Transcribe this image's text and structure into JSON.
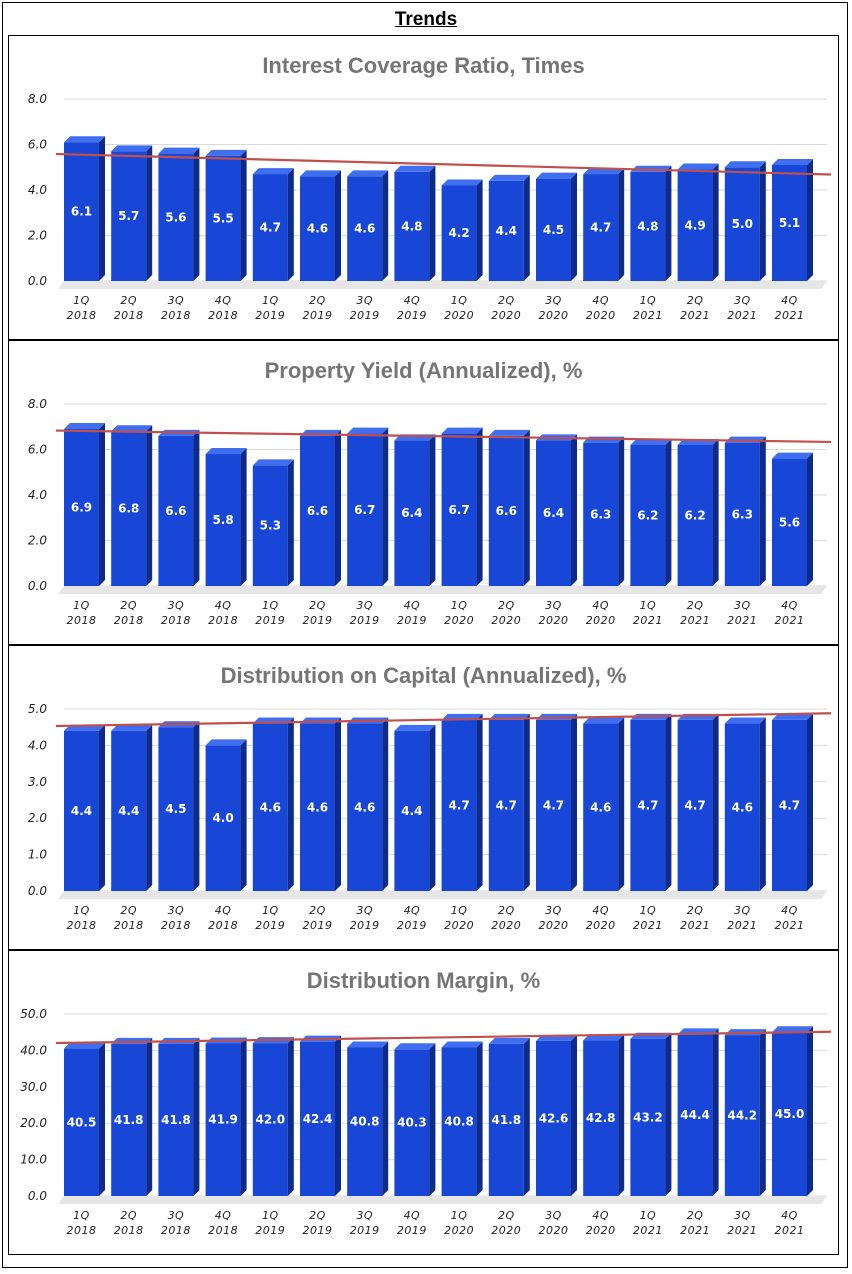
{
  "page": {
    "title": "Trends"
  },
  "colors": {
    "bar_front": "#1846d6",
    "bar_side": "#0d2b8a",
    "bar_top": "#3f6ef0",
    "trend": "#c0504d",
    "grid": "#d9d9d9",
    "title": "#757575"
  },
  "chart_data": [
    {
      "type": "bar",
      "title": "Interest Coverage Ratio, Times",
      "categories": [
        "1Q 2018",
        "2Q 2018",
        "3Q 2018",
        "4Q 2018",
        "1Q 2019",
        "2Q 2019",
        "3Q 2019",
        "4Q 2019",
        "1Q 2020",
        "2Q 2020",
        "3Q 2020",
        "4Q 2020",
        "1Q 2021",
        "2Q 2021",
        "3Q 2021",
        "4Q 2021"
      ],
      "values": [
        6.1,
        5.7,
        5.6,
        5.5,
        4.7,
        4.6,
        4.6,
        4.8,
        4.2,
        4.4,
        4.5,
        4.7,
        4.8,
        4.9,
        5.0,
        5.1
      ],
      "value_labels": [
        "6.1",
        "5.7",
        "5.6",
        "5.5",
        "4.7",
        "4.6",
        "4.6",
        "4.8",
        "4.2",
        "4.4",
        "4.5",
        "4.7",
        "4.8",
        "4.9",
        "5.0",
        "5.1"
      ],
      "ylim": [
        0,
        8
      ],
      "yticks": [
        "0.0",
        "2.0",
        "4.0",
        "6.0",
        "8.0"
      ],
      "trendline": {
        "start": 5.45,
        "end": 4.55
      }
    },
    {
      "type": "bar",
      "title": "Property Yield (Annualized), %",
      "categories": [
        "1Q 2018",
        "2Q 2018",
        "3Q 2018",
        "4Q 2018",
        "1Q 2019",
        "2Q 2019",
        "3Q 2019",
        "4Q 2019",
        "1Q 2020",
        "2Q 2020",
        "3Q 2020",
        "4Q 2020",
        "1Q 2021",
        "2Q 2021",
        "3Q 2021",
        "4Q 2021"
      ],
      "values": [
        6.9,
        6.8,
        6.6,
        5.8,
        5.3,
        6.6,
        6.7,
        6.4,
        6.7,
        6.6,
        6.4,
        6.3,
        6.2,
        6.2,
        6.3,
        5.6
      ],
      "value_labels": [
        "6.9",
        "6.8",
        "6.6",
        "5.8",
        "5.3",
        "6.6",
        "6.7",
        "6.4",
        "6.7",
        "6.6",
        "6.4",
        "6.3",
        "6.2",
        "6.2",
        "6.3",
        "5.6"
      ],
      "ylim": [
        0,
        8
      ],
      "yticks": [
        "0.0",
        "2.0",
        "4.0",
        "6.0",
        "8.0"
      ],
      "trendline": {
        "start": 6.7,
        "end": 6.2
      }
    },
    {
      "type": "bar",
      "title": "Distribution on Capital (Annualized), %",
      "categories": [
        "1Q 2018",
        "2Q 2018",
        "3Q 2018",
        "4Q 2018",
        "1Q 2019",
        "2Q 2019",
        "3Q 2019",
        "4Q 2019",
        "1Q 2020",
        "2Q 2020",
        "3Q 2020",
        "4Q 2020",
        "1Q 2021",
        "2Q 2021",
        "3Q 2021",
        "4Q 2021"
      ],
      "values": [
        4.4,
        4.4,
        4.5,
        4.0,
        4.6,
        4.6,
        4.6,
        4.4,
        4.7,
        4.7,
        4.7,
        4.6,
        4.7,
        4.7,
        4.6,
        4.7
      ],
      "value_labels": [
        "4.4",
        "4.4",
        "4.5",
        "4.0",
        "4.6",
        "4.6",
        "4.6",
        "4.4",
        "4.7",
        "4.7",
        "4.7",
        "4.6",
        "4.7",
        "4.7",
        "4.6",
        "4.7"
      ],
      "ylim": [
        0,
        5
      ],
      "yticks": [
        "0.0",
        "1.0",
        "2.0",
        "3.0",
        "4.0",
        "5.0"
      ],
      "trendline": {
        "start": 4.45,
        "end": 4.8
      }
    },
    {
      "type": "bar",
      "title": "Distribution Margin, %",
      "categories": [
        "1Q 2018",
        "2Q 2018",
        "3Q 2018",
        "4Q 2018",
        "1Q 2019",
        "2Q 2019",
        "3Q 2019",
        "4Q 2019",
        "1Q 2020",
        "2Q 2020",
        "3Q 2020",
        "4Q 2020",
        "1Q 2021",
        "2Q 2021",
        "3Q 2021",
        "4Q 2021"
      ],
      "values": [
        40.5,
        41.8,
        41.8,
        41.9,
        42.0,
        42.4,
        40.8,
        40.3,
        40.8,
        41.8,
        42.6,
        42.8,
        43.2,
        44.4,
        44.2,
        45.0
      ],
      "value_labels": [
        "40.5",
        "41.8",
        "41.8",
        "41.9",
        "42.0",
        "42.4",
        "40.8",
        "40.3",
        "40.8",
        "41.8",
        "42.6",
        "42.8",
        "43.2",
        "44.4",
        "44.2",
        "45.0"
      ],
      "ylim": [
        0,
        50
      ],
      "yticks": [
        "0.0",
        "10.0",
        "20.0",
        "30.0",
        "40.0",
        "50.0"
      ],
      "trendline": {
        "start": 41.2,
        "end": 44.3
      }
    }
  ]
}
